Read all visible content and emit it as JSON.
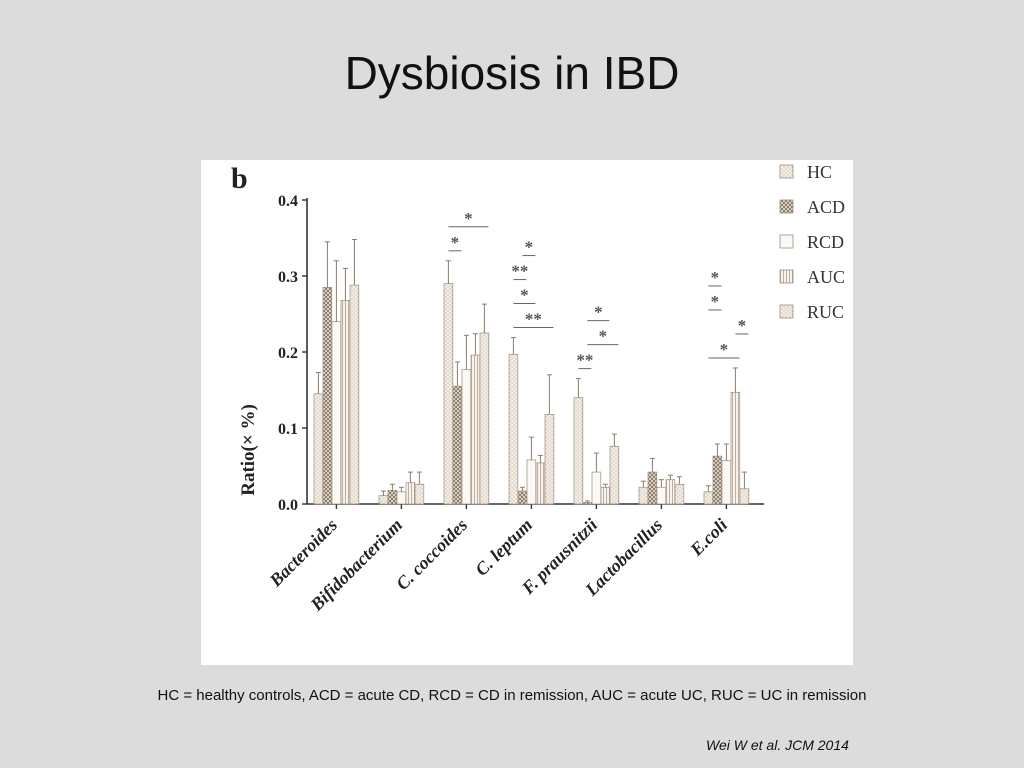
{
  "slide": {
    "title": "Dysbiosis in IBD",
    "caption": "HC = healthy controls, ACD = acute CD, RCD = CD in remission, AUC = acute UC, RUC = UC in remission",
    "citation": "Wei W et al. JCM 2014"
  },
  "chart_data": {
    "type": "bar",
    "panel_label": "b",
    "ylabel": "Ratio(× %)",
    "ylim": [
      0,
      0.4
    ],
    "yticks": [
      "0.0",
      "0.1",
      "0.2",
      "0.3",
      "0.4"
    ],
    "categories": [
      "Bacteroides",
      "Bifidobacterium",
      "C. coccoides",
      "C. leptum",
      "F. prausnitzii",
      "Lactobacillus",
      "E.coli"
    ],
    "series": [
      {
        "name": "HC",
        "pattern": "dots-light",
        "values": [
          0.145,
          0.011,
          0.29,
          0.197,
          0.14,
          0.022,
          0.016
        ],
        "errors": [
          0.028,
          0.006,
          0.03,
          0.022,
          0.025,
          0.008,
          0.008
        ]
      },
      {
        "name": "ACD",
        "pattern": "checker",
        "values": [
          0.285,
          0.018,
          0.155,
          0.017,
          0.002,
          0.042,
          0.063
        ],
        "errors": [
          0.06,
          0.008,
          0.032,
          0.005,
          0.002,
          0.018,
          0.016
        ]
      },
      {
        "name": "RCD",
        "pattern": "plain",
        "values": [
          0.24,
          0.016,
          0.177,
          0.058,
          0.042,
          0.022,
          0.057
        ],
        "errors": [
          0.08,
          0.006,
          0.045,
          0.03,
          0.025,
          0.01,
          0.022
        ]
      },
      {
        "name": "AUC",
        "pattern": "vlines",
        "values": [
          0.268,
          0.028,
          0.196,
          0.054,
          0.022,
          0.032,
          0.147
        ],
        "errors": [
          0.042,
          0.014,
          0.028,
          0.01,
          0.004,
          0.006,
          0.032
        ]
      },
      {
        "name": "RUC",
        "pattern": "dots-light",
        "values": [
          0.288,
          0.026,
          0.225,
          0.118,
          0.076,
          0.026,
          0.02
        ],
        "errors": [
          0.06,
          0.016,
          0.038,
          0.052,
          0.016,
          0.01,
          0.022
        ]
      }
    ],
    "significance": [
      {
        "category": 2,
        "from": 0,
        "to": 1,
        "label": "*"
      },
      {
        "category": 2,
        "from": 0,
        "to": 4,
        "label": "*"
      },
      {
        "category": 3,
        "from": 0,
        "to": 4,
        "label": "**"
      },
      {
        "category": 3,
        "from": 0,
        "to": 2,
        "label": "*"
      },
      {
        "category": 3,
        "from": 0,
        "to": 1,
        "label": "**"
      },
      {
        "category": 3,
        "from": 1,
        "to": 2,
        "label": "*"
      },
      {
        "category": 4,
        "from": 0,
        "to": 1,
        "label": "**"
      },
      {
        "category": 4,
        "from": 1,
        "to": 4,
        "label": "*"
      },
      {
        "category": 4,
        "from": 1,
        "to": 3,
        "label": "*"
      },
      {
        "category": 6,
        "from": 0,
        "to": 3,
        "label": "*"
      },
      {
        "category": 6,
        "from": 3,
        "to": 4,
        "label": "*"
      },
      {
        "category": 6,
        "from": 0,
        "to": 1,
        "label": "*"
      },
      {
        "category": 6,
        "from": 0,
        "to": 1,
        "label": "*"
      }
    ],
    "legend_position": "top-right",
    "grid": false
  }
}
